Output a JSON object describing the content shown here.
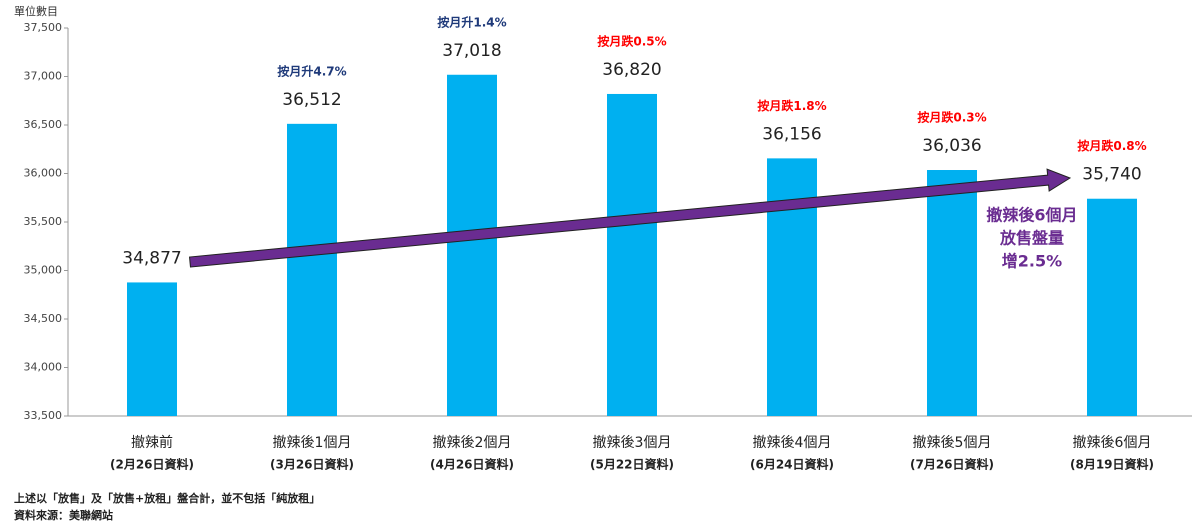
{
  "chart_data": {
    "type": "bar",
    "y_axis_title": "單位數目",
    "categories": [
      "撤辣前",
      "撤辣後1個月",
      "撤辣後2個月",
      "撤辣後3個月",
      "撤辣後4個月",
      "撤辣後5個月",
      "撤辣後6個月"
    ],
    "category_notes": [
      "(2月26日資料)",
      "(3月26日資料)",
      "(4月26日資料)",
      "(5月22日資料)",
      "(6月24日資料)",
      "(7月26日資料)",
      "(8月19日資料)"
    ],
    "values": [
      34877,
      36512,
      37018,
      36820,
      36156,
      36036,
      35740
    ],
    "value_labels": [
      "34,877",
      "36,512",
      "37,018",
      "36,820",
      "36,156",
      "36,036",
      "35,740"
    ],
    "change_labels": [
      null,
      "按月升4.7%",
      "按月升1.4%",
      "按月跌0.5%",
      "按月跌1.8%",
      "按月跌0.3%",
      "按月跌0.8%"
    ],
    "change_colors": [
      null,
      "#1f3a7a",
      "#1f3a7a",
      "#ff0000",
      "#ff0000",
      "#ff0000",
      "#ff0000"
    ],
    "color": "#00b0f0",
    "ylim": [
      33500,
      37500
    ],
    "yticks": [
      {
        "value": 33500,
        "label": "33,500"
      },
      {
        "value": 34000,
        "label": "34,000"
      },
      {
        "value": 34500,
        "label": "34,500"
      },
      {
        "value": 35000,
        "label": "35,000"
      },
      {
        "value": 35500,
        "label": "35,500"
      },
      {
        "value": 36000,
        "label": "36,000"
      },
      {
        "value": 36500,
        "label": "36,500"
      },
      {
        "value": 37000,
        "label": "37,000"
      },
      {
        "value": 37500,
        "label": "37,500"
      }
    ],
    "grid": false,
    "arrow_annotation": [
      "撤辣後6個月",
      "放售盤量",
      "增2.5%"
    ],
    "arrow_color": "#6a2c91",
    "footnotes": [
      "上述以「放售」及「放售+放租」盤合計，並不包括「純放租」",
      "資料來源：美聯網站"
    ]
  }
}
